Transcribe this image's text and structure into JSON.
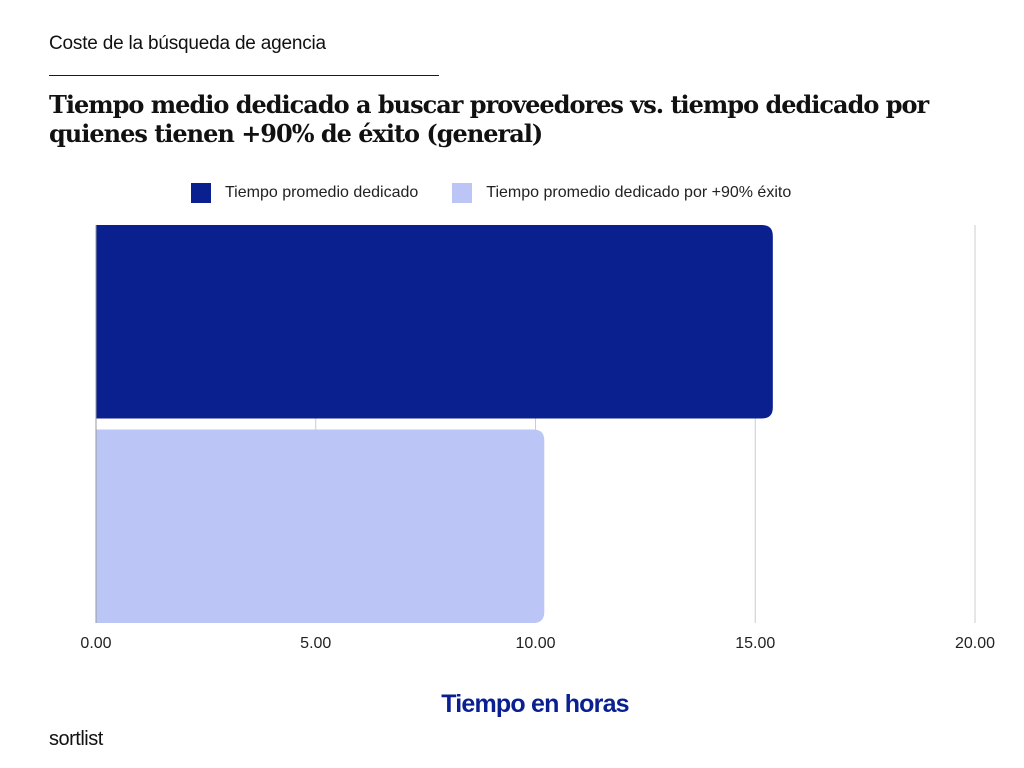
{
  "header": {
    "kicker": "Coste de la búsqueda de agencia",
    "title": "Tiempo medio dedicado a buscar proveedores vs. tiempo dedicado por quienes tienen +90% de éxito  (general)"
  },
  "brand": "sortlist",
  "colors": {
    "series1": "#0a208f",
    "series2": "#bcc6f6",
    "grid": "#cccccc",
    "axis_title": "#0a2090"
  },
  "chart_data": {
    "type": "bar",
    "orientation": "horizontal",
    "series": [
      {
        "name": "Tiempo promedio dedicado",
        "values": [
          15.4
        ]
      },
      {
        "name": "Tiempo promedio dedicado por +90% éxito",
        "values": [
          10.2
        ]
      }
    ],
    "xlabel": "Tiempo en horas",
    "xlim": [
      0,
      20
    ],
    "xticks": [
      "0.00",
      "5.00",
      "10.00",
      "15.00",
      "20.00"
    ],
    "grid": true,
    "legend_position": "top"
  }
}
